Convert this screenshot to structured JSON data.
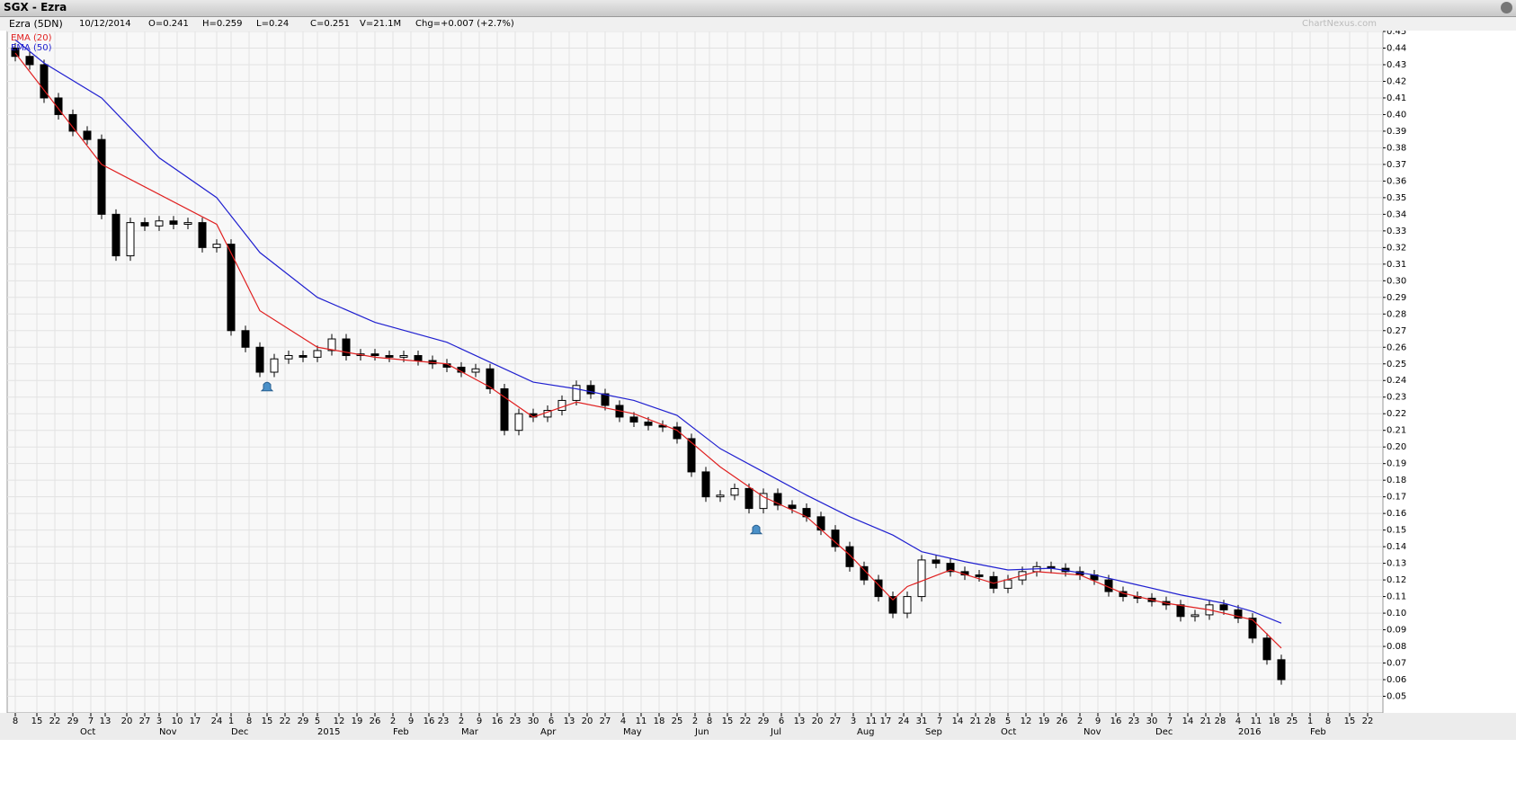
{
  "header": {
    "title": "SGX - Ezra",
    "symbol": "Ezra (5DN)",
    "date": "10/12/2014",
    "open": "O=0.241",
    "high": "H=0.259",
    "low": "L=0.24",
    "close": "C=0.251",
    "volume": "V=21.1M",
    "change": "Chg=+0.007 (+2.7%)",
    "watermark": "ChartNexus.com"
  },
  "chart_data": {
    "type": "candlestick",
    "x": [
      0,
      4,
      8,
      12,
      16,
      20,
      24,
      28,
      32,
      36,
      40,
      44,
      48,
      52,
      56,
      60,
      64,
      68,
      72,
      76,
      80,
      84,
      88,
      92,
      96,
      100,
      104,
      108,
      112,
      116,
      120,
      124,
      128,
      132,
      136,
      140,
      144,
      148,
      152,
      156,
      160,
      164,
      168,
      172,
      176,
      180,
      184,
      188,
      192,
      196,
      200,
      204,
      208,
      212,
      216,
      220,
      224,
      228,
      232,
      236,
      240,
      244,
      248,
      252,
      256,
      260,
      264,
      268,
      272,
      276,
      280,
      284,
      288,
      292,
      296,
      300,
      304,
      308,
      312,
      316,
      320,
      324,
      328,
      332,
      336,
      340,
      344,
      348,
      352
    ],
    "open": [
      0.44,
      0.435,
      0.43,
      0.41,
      0.4,
      0.39,
      0.385,
      0.34,
      0.315,
      0.335,
      0.333,
      0.336,
      0.334,
      0.335,
      0.32,
      0.322,
      0.27,
      0.26,
      0.245,
      0.253,
      0.255,
      0.254,
      0.258,
      0.265,
      0.255,
      0.256,
      0.255,
      0.254,
      0.255,
      0.252,
      0.25,
      0.248,
      0.245,
      0.247,
      0.235,
      0.21,
      0.22,
      0.218,
      0.222,
      0.228,
      0.237,
      0.232,
      0.225,
      0.218,
      0.215,
      0.213,
      0.212,
      0.205,
      0.185,
      0.17,
      0.171,
      0.175,
      0.163,
      0.172,
      0.165,
      0.163,
      0.158,
      0.15,
      0.14,
      0.128,
      0.12,
      0.11,
      0.1,
      0.11,
      0.132,
      0.13,
      0.125,
      0.123,
      0.122,
      0.115,
      0.12,
      0.125,
      0.128,
      0.127,
      0.125,
      0.123,
      0.12,
      0.113,
      0.11,
      0.109,
      0.107,
      0.105,
      0.098,
      0.099,
      0.105,
      0.102,
      0.097,
      0.085,
      0.072
    ],
    "high": [
      0.443,
      0.438,
      0.433,
      0.413,
      0.403,
      0.393,
      0.388,
      0.343,
      0.338,
      0.338,
      0.339,
      0.339,
      0.338,
      0.338,
      0.325,
      0.325,
      0.273,
      0.263,
      0.256,
      0.258,
      0.258,
      0.261,
      0.268,
      0.268,
      0.259,
      0.259,
      0.258,
      0.258,
      0.258,
      0.255,
      0.253,
      0.251,
      0.25,
      0.25,
      0.238,
      0.223,
      0.223,
      0.225,
      0.231,
      0.24,
      0.24,
      0.235,
      0.228,
      0.221,
      0.218,
      0.216,
      0.215,
      0.208,
      0.188,
      0.174,
      0.178,
      0.178,
      0.175,
      0.175,
      0.168,
      0.166,
      0.161,
      0.153,
      0.143,
      0.131,
      0.123,
      0.113,
      0.113,
      0.135,
      0.135,
      0.133,
      0.128,
      0.126,
      0.125,
      0.123,
      0.128,
      0.131,
      0.131,
      0.13,
      0.128,
      0.126,
      0.123,
      0.116,
      0.113,
      0.112,
      0.11,
      0.108,
      0.102,
      0.108,
      0.108,
      0.105,
      0.1,
      0.088,
      0.075
    ],
    "low": [
      0.432,
      0.427,
      0.407,
      0.397,
      0.387,
      0.382,
      0.337,
      0.312,
      0.312,
      0.33,
      0.33,
      0.331,
      0.331,
      0.317,
      0.317,
      0.267,
      0.257,
      0.242,
      0.242,
      0.25,
      0.251,
      0.251,
      0.255,
      0.252,
      0.252,
      0.252,
      0.251,
      0.251,
      0.249,
      0.247,
      0.245,
      0.242,
      0.242,
      0.232,
      0.207,
      0.207,
      0.215,
      0.215,
      0.219,
      0.225,
      0.229,
      0.222,
      0.215,
      0.212,
      0.21,
      0.209,
      0.202,
      0.182,
      0.167,
      0.167,
      0.168,
      0.16,
      0.16,
      0.162,
      0.16,
      0.155,
      0.147,
      0.137,
      0.125,
      0.117,
      0.107,
      0.097,
      0.097,
      0.107,
      0.127,
      0.122,
      0.12,
      0.119,
      0.112,
      0.112,
      0.117,
      0.122,
      0.124,
      0.122,
      0.12,
      0.117,
      0.11,
      0.107,
      0.106,
      0.104,
      0.102,
      0.095,
      0.095,
      0.096,
      0.099,
      0.094,
      0.082,
      0.069,
      0.057
    ],
    "close": [
      0.435,
      0.43,
      0.41,
      0.4,
      0.39,
      0.385,
      0.34,
      0.315,
      0.335,
      0.333,
      0.336,
      0.334,
      0.335,
      0.32,
      0.322,
      0.27,
      0.26,
      0.245,
      0.253,
      0.255,
      0.254,
      0.258,
      0.265,
      0.255,
      0.256,
      0.255,
      0.254,
      0.255,
      0.252,
      0.25,
      0.248,
      0.245,
      0.247,
      0.235,
      0.21,
      0.22,
      0.218,
      0.222,
      0.228,
      0.237,
      0.232,
      0.225,
      0.218,
      0.215,
      0.213,
      0.212,
      0.205,
      0.185,
      0.17,
      0.171,
      0.175,
      0.163,
      0.172,
      0.165,
      0.163,
      0.158,
      0.15,
      0.14,
      0.128,
      0.12,
      0.11,
      0.1,
      0.11,
      0.132,
      0.13,
      0.125,
      0.123,
      0.122,
      0.115,
      0.12,
      0.125,
      0.128,
      0.127,
      0.125,
      0.123,
      0.12,
      0.113,
      0.11,
      0.109,
      0.107,
      0.105,
      0.098,
      0.099,
      0.105,
      0.102,
      0.097,
      0.085,
      0.072,
      0.06
    ],
    "up_color": "#ffffff",
    "down_color": "#000000",
    "series": [
      {
        "name": "EMA (20)",
        "color": "#e02020",
        "x": [
          0,
          24,
          56,
          68,
          84,
          100,
          120,
          132,
          144,
          156,
          172,
          184,
          196,
          208,
          220,
          232,
          244,
          248,
          260,
          272,
          284,
          296,
          308,
          320,
          332,
          344,
          352
        ],
        "values": [
          0.437,
          0.37,
          0.334,
          0.282,
          0.26,
          0.254,
          0.25,
          0.236,
          0.218,
          0.227,
          0.22,
          0.21,
          0.188,
          0.17,
          0.158,
          0.135,
          0.108,
          0.116,
          0.126,
          0.118,
          0.125,
          0.123,
          0.112,
          0.106,
          0.102,
          0.096,
          0.079
        ]
      },
      {
        "name": "EMA (50)",
        "color": "#2020d0",
        "x": [
          0,
          8,
          24,
          40,
          56,
          68,
          84,
          100,
          120,
          132,
          144,
          156,
          172,
          184,
          196,
          208,
          220,
          232,
          244,
          252,
          264,
          276,
          288,
          300,
          312,
          324,
          336,
          344,
          352
        ],
        "values": [
          0.445,
          0.431,
          0.41,
          0.374,
          0.35,
          0.317,
          0.29,
          0.275,
          0.263,
          0.251,
          0.239,
          0.235,
          0.228,
          0.219,
          0.199,
          0.185,
          0.171,
          0.158,
          0.147,
          0.137,
          0.131,
          0.126,
          0.127,
          0.123,
          0.117,
          0.111,
          0.106,
          0.101,
          0.094
        ]
      }
    ],
    "alerts": {
      "x": [
        70,
        206
      ],
      "y": [
        0.2365,
        0.1505
      ]
    },
    "xlim": [
      -2.25,
      380.25
    ],
    "ylim": [
      0.04,
      0.45
    ],
    "yticks": [
      0.05,
      0.06,
      0.07,
      0.08,
      0.09,
      {
        "value": 0.1,
        "label": "0.10"
      },
      0.11,
      0.12,
      0.13,
      0.14,
      0.15,
      0.16,
      0.17,
      0.18,
      0.19,
      {
        "value": 0.2,
        "label": "0.20"
      },
      0.21,
      0.22,
      0.23,
      0.24,
      0.25,
      0.26,
      0.27,
      0.28,
      0.29,
      {
        "value": 0.3,
        "label": "0.30"
      },
      0.31,
      0.32,
      0.33,
      0.34,
      0.35,
      0.36,
      0.37,
      0.38,
      0.39,
      {
        "value": 0.4,
        "label": "0.40"
      },
      0.41,
      0.42,
      0.43,
      0.44,
      0.45
    ],
    "xticks": [
      {
        "value": 0,
        "label": "8"
      },
      {
        "value": 6,
        "label": "15"
      },
      {
        "value": 11,
        "label": "22"
      },
      {
        "value": 16,
        "label": "29"
      },
      {
        "value": 21,
        "label": "7"
      },
      {
        "value": 25,
        "label": "13"
      },
      {
        "value": 31,
        "label": "20"
      },
      {
        "value": 36,
        "label": "27"
      },
      {
        "value": 40,
        "label": "3"
      },
      {
        "value": 45,
        "label": "10"
      },
      {
        "value": 50,
        "label": "17"
      },
      {
        "value": 56,
        "label": "24"
      },
      {
        "value": 60,
        "label": "1"
      },
      {
        "value": 65,
        "label": "8"
      },
      {
        "value": 70,
        "label": "15"
      },
      {
        "value": 75,
        "label": "22"
      },
      {
        "value": 80,
        "label": "29"
      },
      {
        "value": 84,
        "label": "5"
      },
      {
        "value": 90,
        "label": "12"
      },
      {
        "value": 95,
        "label": "19"
      },
      {
        "value": 100,
        "label": "26"
      },
      {
        "value": 105,
        "label": "2"
      },
      {
        "value": 110,
        "label": "9"
      },
      {
        "value": 115,
        "label": "16"
      },
      {
        "value": 119,
        "label": "23"
      },
      {
        "value": 124,
        "label": "2"
      },
      {
        "value": 129,
        "label": "9"
      },
      {
        "value": 134,
        "label": "16"
      },
      {
        "value": 139,
        "label": "23"
      },
      {
        "value": 144,
        "label": "30"
      },
      {
        "value": 149,
        "label": "6"
      },
      {
        "value": 154,
        "label": "13"
      },
      {
        "value": 159,
        "label": "20"
      },
      {
        "value": 164,
        "label": "27"
      },
      {
        "value": 169,
        "label": "4"
      },
      {
        "value": 174,
        "label": "11"
      },
      {
        "value": 179,
        "label": "18"
      },
      {
        "value": 184,
        "label": "25"
      },
      {
        "value": 189,
        "label": "2"
      },
      {
        "value": 193,
        "label": "8"
      },
      {
        "value": 198,
        "label": "15"
      },
      {
        "value": 203,
        "label": "22"
      },
      {
        "value": 208,
        "label": "29"
      },
      {
        "value": 213,
        "label": "6"
      },
      {
        "value": 218,
        "label": "13"
      },
      {
        "value": 223,
        "label": "20"
      },
      {
        "value": 228,
        "label": "27"
      },
      {
        "value": 233,
        "label": "3"
      },
      {
        "value": 238,
        "label": "11"
      },
      {
        "value": 242,
        "label": "17"
      },
      {
        "value": 247,
        "label": "24"
      },
      {
        "value": 252,
        "label": "31"
      },
      {
        "value": 257,
        "label": "7"
      },
      {
        "value": 262,
        "label": "14"
      },
      {
        "value": 267,
        "label": "21"
      },
      {
        "value": 271,
        "label": "28"
      },
      {
        "value": 276,
        "label": "5"
      },
      {
        "value": 281,
        "label": "12"
      },
      {
        "value": 286,
        "label": "19"
      },
      {
        "value": 291,
        "label": "26"
      },
      {
        "value": 296,
        "label": "2"
      },
      {
        "value": 301,
        "label": "9"
      },
      {
        "value": 306,
        "label": "16"
      },
      {
        "value": 311,
        "label": "23"
      },
      {
        "value": 316,
        "label": "30"
      },
      {
        "value": 321,
        "label": "7"
      },
      {
        "value": 326,
        "label": "14"
      },
      {
        "value": 331,
        "label": "21"
      },
      {
        "value": 335,
        "label": "28"
      },
      {
        "value": 340,
        "label": "4"
      },
      {
        "value": 345,
        "label": "11"
      },
      {
        "value": 350,
        "label": "18"
      },
      {
        "value": 355,
        "label": "25"
      },
      {
        "value": 360,
        "label": "1"
      },
      {
        "value": 365,
        "label": "8"
      },
      {
        "value": 371,
        "label": "15"
      },
      {
        "value": 376,
        "label": "22"
      }
    ],
    "x_month_labels": [
      {
        "value": 19,
        "label": "Oct"
      },
      {
        "value": 41,
        "label": "Nov"
      },
      {
        "value": 61,
        "label": "Dec"
      },
      {
        "value": 85,
        "label": "2015"
      },
      {
        "value": 106,
        "label": "Feb"
      },
      {
        "value": 125,
        "label": "Mar"
      },
      {
        "value": 147,
        "label": "Apr"
      },
      {
        "value": 170,
        "label": "May"
      },
      {
        "value": 190,
        "label": "Jun"
      },
      {
        "value": 211,
        "label": "Jul"
      },
      {
        "value": 235,
        "label": "Aug"
      },
      {
        "value": 254,
        "label": "Sep"
      },
      {
        "value": 275,
        "label": "Oct"
      },
      {
        "value": 298,
        "label": "Nov"
      },
      {
        "value": 318,
        "label": "Dec"
      },
      {
        "value": 341,
        "label": "2016"
      },
      {
        "value": 361,
        "label": "Feb"
      }
    ],
    "grid": true
  }
}
